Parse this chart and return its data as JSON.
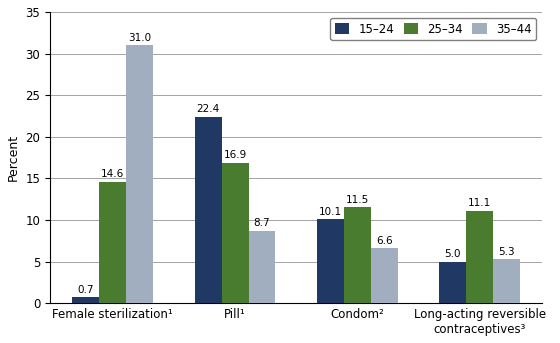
{
  "categories": [
    "Female sterilization¹",
    "Pill¹",
    "Condom²",
    "Long-acting reversible\ncontraceptives³"
  ],
  "series": {
    "15–24": [
      0.7,
      22.4,
      10.1,
      5.0
    ],
    "25–34": [
      14.6,
      16.9,
      11.5,
      11.1
    ],
    "35–44": [
      31.0,
      8.7,
      6.6,
      5.3
    ]
  },
  "colors": {
    "15–24": "#1f3864",
    "25–34": "#4a7c2f",
    "35–44": "#a0aec0"
  },
  "ylabel": "Percent",
  "ylim": [
    0,
    35
  ],
  "yticks": [
    0,
    5,
    10,
    15,
    20,
    25,
    30,
    35
  ],
  "legend_labels": [
    "15–24",
    "25–34",
    "35–44"
  ],
  "bar_width": 0.22,
  "label_fontsize": 7.5,
  "axis_fontsize": 9,
  "tick_fontsize": 8.5
}
